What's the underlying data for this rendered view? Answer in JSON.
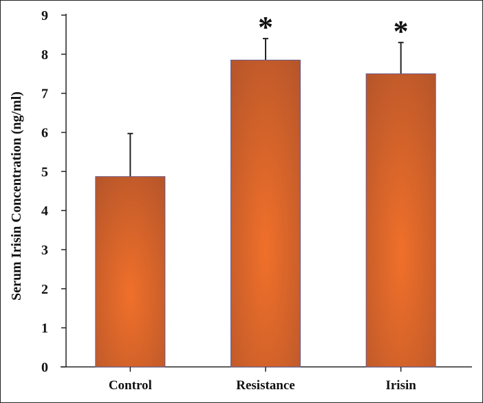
{
  "chart_data": {
    "type": "bar",
    "title": "",
    "xlabel": "",
    "ylabel": "Serum Irisin Concentration (ng/ml)",
    "categories": [
      "Control",
      "Resistance",
      "Irisin"
    ],
    "values": [
      4.87,
      7.85,
      7.5
    ],
    "error_upper": [
      5.97,
      8.4,
      8.3
    ],
    "significance": [
      "",
      "*",
      "*"
    ],
    "ylim": [
      0,
      9
    ],
    "yticks": [
      "0",
      "1",
      "2",
      "3",
      "4",
      "5",
      "6",
      "7",
      "8",
      "9"
    ],
    "grid": false,
    "bar_color": "#e8692a",
    "bar_edge_color": "#b5562a"
  }
}
